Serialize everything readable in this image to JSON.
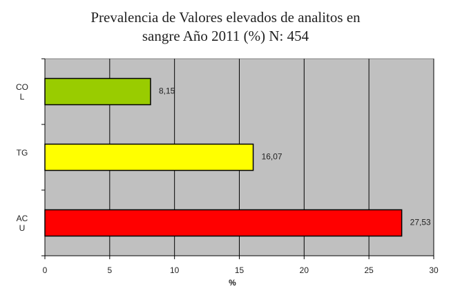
{
  "chart_data": {
    "type": "bar",
    "orientation": "horizontal",
    "title": "Prevalencia de Valores elevados de analitos en\nsangre Año 2011 (%) N: 454",
    "categories": [
      "CO\nL",
      "TG",
      "AC\nU"
    ],
    "values": [
      8.15,
      16.07,
      27.53
    ],
    "value_labels": [
      "8,15",
      "16,07",
      "27,53"
    ],
    "colors": [
      "#99cc00",
      "#ffff00",
      "#ff0000"
    ],
    "xlabel": "%",
    "xlim": [
      0,
      30
    ],
    "xticks": [
      0,
      5,
      10,
      15,
      20,
      25,
      30
    ],
    "grid": true
  }
}
